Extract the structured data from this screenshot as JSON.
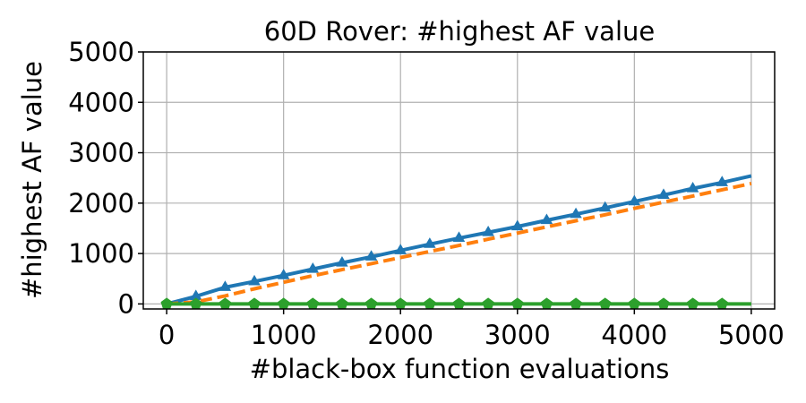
{
  "chart_data": {
    "type": "line",
    "title": "60D Rover: #highest AF value",
    "xlabel": "#black-box function evaluations",
    "ylabel": "#highest AF value",
    "xlim": [
      -200,
      5200
    ],
    "ylim": [
      -100,
      5000
    ],
    "xticks": [
      0,
      1000,
      2000,
      3000,
      4000,
      5000
    ],
    "yticks": [
      0,
      1000,
      2000,
      3000,
      4000,
      5000
    ],
    "grid": true,
    "colors": {
      "blue": "#1f77b4",
      "orange": "#ff7f0e",
      "green": "#2ca02c"
    },
    "series": [
      {
        "key": "blue",
        "color": "#1f77b4",
        "line_style": "solid",
        "marker": "triangle",
        "x": [
          0,
          250,
          500,
          750,
          1000,
          1250,
          1500,
          1750,
          2000,
          2250,
          2500,
          2750,
          3000,
          3250,
          3500,
          3750,
          4000,
          4250,
          4500,
          4750,
          5000
        ],
        "values": [
          0,
          150,
          330,
          445,
          565,
          690,
          815,
          935,
          1060,
          1185,
          1305,
          1420,
          1535,
          1660,
          1780,
          1905,
          2030,
          2160,
          2290,
          2410,
          2540
        ],
        "marker_x": [
          250,
          500,
          750,
          1000,
          1250,
          1500,
          1750,
          2000,
          2250,
          2500,
          2750,
          3000,
          3250,
          3500,
          3750,
          4000,
          4250,
          4500,
          4750
        ]
      },
      {
        "key": "orange",
        "color": "#ff7f0e",
        "line_style": "dashed",
        "marker": "none",
        "x": [
          0,
          250,
          500,
          750,
          1000,
          1250,
          1500,
          1750,
          2000,
          2250,
          2500,
          2750,
          3000,
          3250,
          3500,
          3750,
          4000,
          4250,
          4500,
          4750,
          5000
        ],
        "values": [
          0,
          40,
          160,
          300,
          430,
          560,
          680,
          800,
          920,
          1040,
          1160,
          1285,
          1405,
          1530,
          1650,
          1770,
          1895,
          2020,
          2140,
          2265,
          2390
        ],
        "marker_x": []
      },
      {
        "key": "green",
        "color": "#2ca02c",
        "line_style": "solid",
        "marker": "pentagon",
        "x": [
          0,
          5000
        ],
        "values": [
          0,
          0
        ],
        "marker_x": [
          0,
          250,
          500,
          750,
          1000,
          1250,
          1500,
          1750,
          2000,
          2250,
          2500,
          2750,
          3000,
          3250,
          3500,
          3750,
          4000,
          4250,
          4500,
          4750
        ]
      }
    ]
  }
}
